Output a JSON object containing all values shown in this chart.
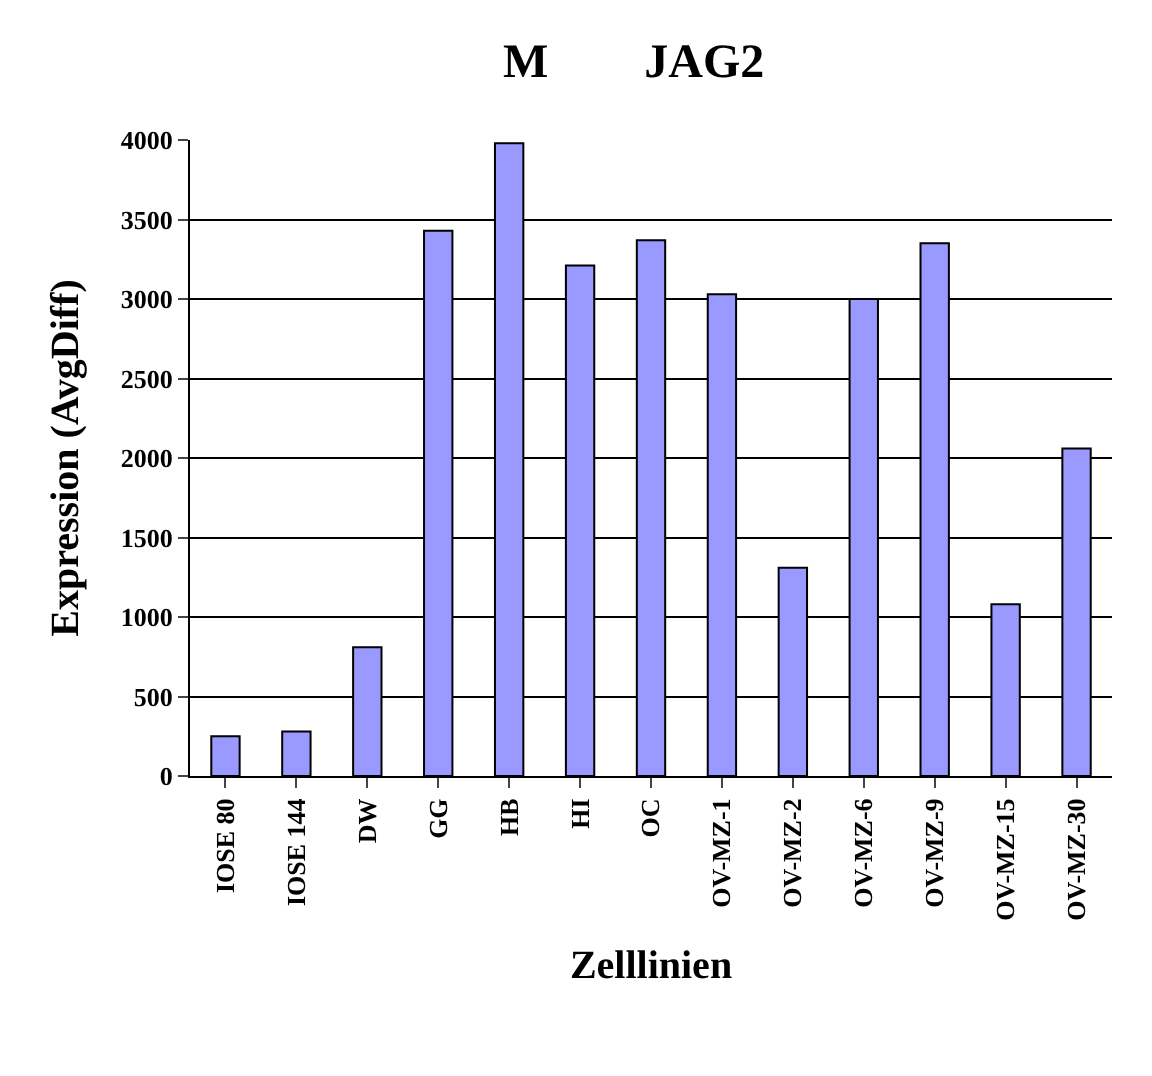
{
  "chart_data": {
    "type": "bar",
    "title": "M        JAG2",
    "xlabel": "Zelllinien",
    "ylabel": "Expression (AvgDiff)",
    "categories": [
      "IOSE 80",
      "IOSE 144",
      "DW",
      "GG",
      "HB",
      "HI",
      "OC",
      "OV-MZ-1",
      "OV-MZ-2",
      "OV-MZ-6",
      "OV-MZ-9",
      "OV-MZ-15",
      "OV-MZ-30"
    ],
    "values": [
      250,
      280,
      810,
      3430,
      3980,
      3210,
      3370,
      3030,
      1310,
      3000,
      3350,
      1080,
      2060
    ],
    "color": "#9999ff",
    "ylim": [
      0,
      4000
    ],
    "yticks": [
      0,
      500,
      1000,
      1500,
      2000,
      2500,
      3000,
      3500,
      4000
    ],
    "grid": "y",
    "legend": false
  }
}
